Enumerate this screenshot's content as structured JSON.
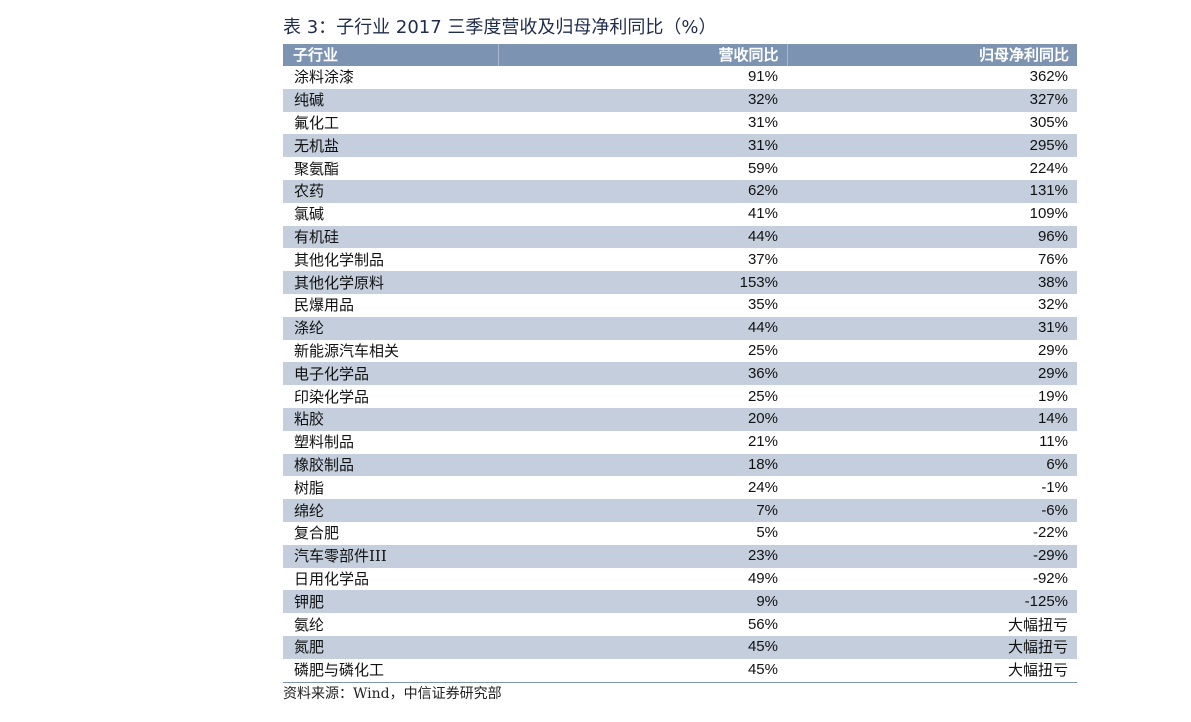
{
  "title": "表 3：子行业 2017 三季度营收及归母净利同比（%）",
  "columns": [
    "子行业",
    "营收同比",
    "归母净利同比"
  ],
  "rows": [
    {
      "name": "涂料涂漆",
      "revenue": "91%",
      "profit": "362%"
    },
    {
      "name": "纯碱",
      "revenue": "32%",
      "profit": "327%"
    },
    {
      "name": "氟化工",
      "revenue": "31%",
      "profit": "305%"
    },
    {
      "name": "无机盐",
      "revenue": "31%",
      "profit": "295%"
    },
    {
      "name": "聚氨酯",
      "revenue": "59%",
      "profit": "224%"
    },
    {
      "name": "农药",
      "revenue": "62%",
      "profit": "131%"
    },
    {
      "name": "氯碱",
      "revenue": "41%",
      "profit": "109%"
    },
    {
      "name": "有机硅",
      "revenue": "44%",
      "profit": "96%"
    },
    {
      "name": "其他化学制品",
      "revenue": "37%",
      "profit": "76%"
    },
    {
      "name": "其他化学原料",
      "revenue": "153%",
      "profit": "38%"
    },
    {
      "name": "民爆用品",
      "revenue": "35%",
      "profit": "32%"
    },
    {
      "name": "涤纶",
      "revenue": "44%",
      "profit": "31%"
    },
    {
      "name": "新能源汽车相关",
      "revenue": "25%",
      "profit": "29%"
    },
    {
      "name": "电子化学品",
      "revenue": "36%",
      "profit": "29%"
    },
    {
      "name": "印染化学品",
      "revenue": "25%",
      "profit": "19%"
    },
    {
      "name": "粘胶",
      "revenue": "20%",
      "profit": "14%"
    },
    {
      "name": "塑料制品",
      "revenue": "21%",
      "profit": "11%"
    },
    {
      "name": "橡胶制品",
      "revenue": "18%",
      "profit": "6%"
    },
    {
      "name": "树脂",
      "revenue": "24%",
      "profit": "-1%"
    },
    {
      "name": "绵纶",
      "revenue": "7%",
      "profit": "-6%"
    },
    {
      "name": "复合肥",
      "revenue": "5%",
      "profit": "-22%"
    },
    {
      "name": "汽车零部件III",
      "revenue": "23%",
      "profit": "-29%"
    },
    {
      "name": "日用化学品",
      "revenue": "49%",
      "profit": "-92%"
    },
    {
      "name": "钾肥",
      "revenue": "9%",
      "profit": "-125%"
    },
    {
      "name": "氨纶",
      "revenue": "56%",
      "profit": "大幅扭亏"
    },
    {
      "name": "氮肥",
      "revenue": "45%",
      "profit": "大幅扭亏"
    },
    {
      "name": "磷肥与磷化工",
      "revenue": "45%",
      "profit": "大幅扭亏"
    }
  ],
  "source": "资料来源：Wind，中信证券研究部",
  "colors": {
    "header_bg": "#7d93b2",
    "stripe_bg": "#c4cedc",
    "title": "#1f2d4d"
  }
}
